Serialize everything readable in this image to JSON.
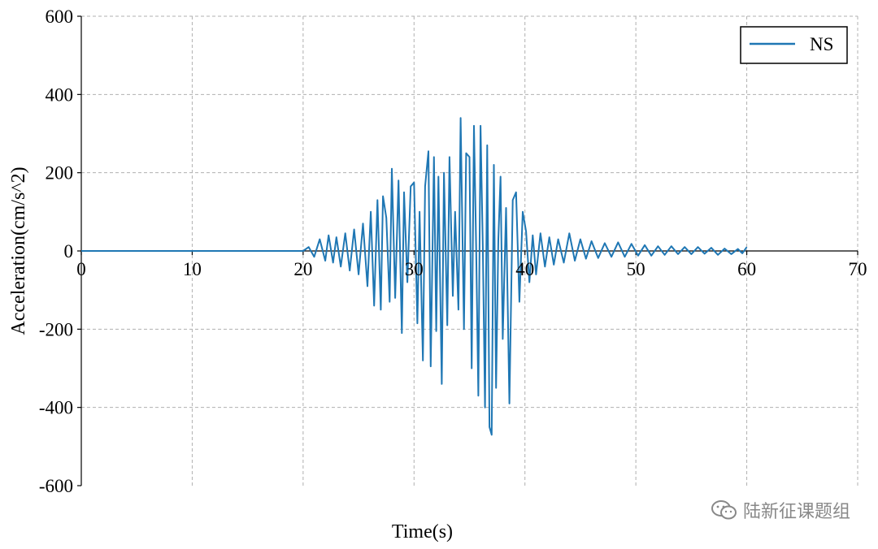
{
  "chart_data": {
    "type": "line",
    "title": "",
    "xlabel": "Time(s)",
    "ylabel": "Acceleration(cm/s^2)",
    "xlim": [
      0,
      70
    ],
    "ylim": [
      -600,
      600
    ],
    "xticks": [
      0,
      10,
      20,
      30,
      40,
      50,
      60,
      70
    ],
    "yticks": [
      -600,
      -400,
      -200,
      0,
      200,
      400,
      600
    ],
    "grid": true,
    "grid_style": "dashed",
    "legend_placement": "top-right",
    "series": [
      {
        "name": "NS",
        "color": "#1f77b4",
        "x": [
          0,
          20,
          20.5,
          21,
          21.5,
          22,
          22.3,
          22.7,
          23,
          23.4,
          23.8,
          24.2,
          24.6,
          25,
          25.4,
          25.8,
          26.1,
          26.4,
          26.7,
          27,
          27.2,
          27.5,
          27.8,
          28,
          28.3,
          28.6,
          28.9,
          29.1,
          29.4,
          29.7,
          30,
          30.3,
          30.5,
          30.8,
          31,
          31.3,
          31.5,
          31.8,
          32,
          32.2,
          32.5,
          32.7,
          33,
          33.2,
          33.5,
          33.7,
          34,
          34.2,
          34.5,
          34.7,
          35,
          35.2,
          35.4,
          35.6,
          35.8,
          36,
          36.2,
          36.4,
          36.6,
          36.8,
          37,
          37.2,
          37.4,
          37.6,
          37.8,
          38,
          38.3,
          38.6,
          38.9,
          39.2,
          39.5,
          39.8,
          40.1,
          40.4,
          40.7,
          41,
          41.4,
          41.8,
          42.2,
          42.6,
          43,
          43.5,
          44,
          44.5,
          45,
          45.5,
          46,
          46.6,
          47.2,
          47.8,
          48.4,
          49,
          49.6,
          50.2,
          50.8,
          51.4,
          52,
          52.6,
          53.2,
          53.8,
          54.4,
          55,
          55.6,
          56.2,
          56.8,
          57.4,
          58,
          58.6,
          59.2,
          59.6,
          60
        ],
        "y": [
          0,
          0,
          10,
          -15,
          30,
          -25,
          40,
          -30,
          35,
          -40,
          45,
          -50,
          55,
          -60,
          70,
          -90,
          100,
          -140,
          130,
          -150,
          140,
          85,
          -130,
          210,
          -120,
          180,
          -210,
          150,
          -80,
          165,
          175,
          -185,
          100,
          -280,
          165,
          255,
          -295,
          240,
          -205,
          190,
          -340,
          200,
          -190,
          240,
          -115,
          100,
          -150,
          340,
          -200,
          250,
          240,
          -300,
          320,
          10,
          -370,
          320,
          10,
          -400,
          270,
          -450,
          -470,
          220,
          -350,
          30,
          190,
          -225,
          110,
          -390,
          130,
          150,
          -130,
          100,
          50,
          -80,
          40,
          -60,
          45,
          -40,
          35,
          -35,
          30,
          -30,
          45,
          -25,
          30,
          -20,
          25,
          -18,
          20,
          -15,
          22,
          -15,
          18,
          -12,
          15,
          -12,
          12,
          -10,
          12,
          -8,
          10,
          -8,
          10,
          -7,
          8,
          -10,
          6,
          -8,
          5,
          -6,
          10
        ]
      }
    ]
  },
  "watermark": {
    "icon": "wechat-icon",
    "text": "陆新征课题组"
  }
}
